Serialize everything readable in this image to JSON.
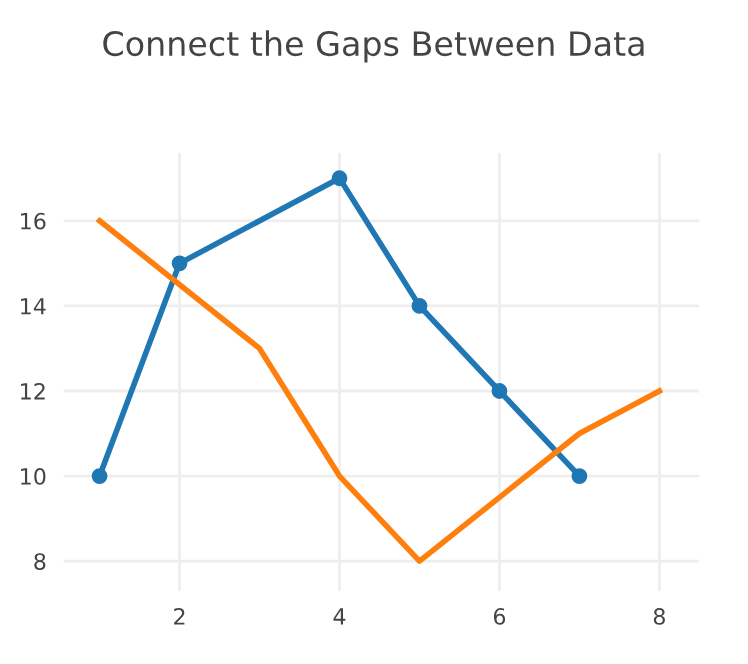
{
  "chart_data": {
    "type": "line",
    "title": "Connect the Gaps Between Data",
    "x": [
      1,
      2,
      3,
      4,
      5,
      6,
      7,
      8
    ],
    "series": [
      {
        "color": "#1f77b4",
        "values": [
          10,
          15,
          null,
          17,
          14,
          12,
          10,
          null
        ],
        "marker": "circle"
      },
      {
        "color": "#ff7f0e",
        "values": [
          16,
          null,
          13,
          10,
          8,
          null,
          11,
          12
        ],
        "marker": "none"
      }
    ],
    "xlim": [
      0.55,
      8.5
    ],
    "ylim": [
      7.3,
      17.6
    ],
    "xticks": [
      2,
      4,
      6,
      8
    ],
    "yticks": [
      8,
      10,
      12,
      14,
      16
    ],
    "grid": true
  }
}
